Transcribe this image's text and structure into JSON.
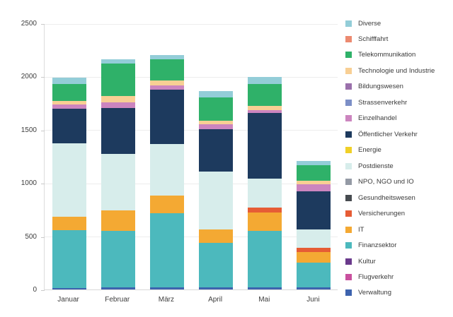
{
  "chart_data": {
    "type": "bar",
    "stacked": true,
    "title": "",
    "xlabel": "",
    "ylabel": "",
    "categories": [
      "Januar",
      "Februar",
      "März",
      "April",
      "Mai",
      "Juni"
    ],
    "yticks": [
      0,
      500,
      1000,
      1500,
      2000,
      2500
    ],
    "ylim": [
      0,
      2500
    ],
    "grid": true,
    "legend_position": "right",
    "series": [
      {
        "name": "Diverse",
        "color": "#93cdd8",
        "values": [
          60,
          40,
          40,
          60,
          65,
          40
        ]
      },
      {
        "name": "Schifffahrt",
        "color": "#ec8a70",
        "values": [
          0,
          0,
          0,
          0,
          0,
          0
        ]
      },
      {
        "name": "Telekommunikation",
        "color": "#2fb169",
        "values": [
          160,
          300,
          205,
          220,
          205,
          145
        ]
      },
      {
        "name": "Technologie und Industrie",
        "color": "#f8cf94",
        "values": [
          35,
          65,
          40,
          35,
          40,
          30
        ]
      },
      {
        "name": "Bildungswesen",
        "color": "#9a70ab",
        "values": [
          0,
          0,
          0,
          0,
          0,
          0
        ]
      },
      {
        "name": "Strassenverkehr",
        "color": "#7c8fc7",
        "values": [
          0,
          0,
          0,
          0,
          0,
          0
        ]
      },
      {
        "name": "Einzelhandel",
        "color": "#cc85bf",
        "values": [
          40,
          50,
          45,
          45,
          25,
          65
        ]
      },
      {
        "name": "Öffentlicher Verkehr",
        "color": "#1d3a5e",
        "values": [
          320,
          430,
          510,
          395,
          620,
          360
        ]
      },
      {
        "name": "Energie",
        "color": "#f0d028",
        "values": [
          0,
          0,
          0,
          0,
          0,
          0
        ]
      },
      {
        "name": "Postdienste",
        "color": "#d7edeb",
        "values": [
          690,
          530,
          485,
          545,
          270,
          175
        ]
      },
      {
        "name": "NPO, NGO und IO",
        "color": "#949aa5",
        "values": [
          0,
          0,
          0,
          0,
          0,
          0
        ]
      },
      {
        "name": "Gesundheitswesen",
        "color": "#474b50",
        "values": [
          0,
          0,
          0,
          0,
          0,
          0
        ]
      },
      {
        "name": "Versicherungen",
        "color": "#e65c35",
        "values": [
          0,
          0,
          0,
          0,
          45,
          40
        ]
      },
      {
        "name": "IT",
        "color": "#f4a933",
        "values": [
          130,
          195,
          165,
          125,
          175,
          100
        ]
      },
      {
        "name": "Finanzsektor",
        "color": "#4cb9bd",
        "values": [
          540,
          530,
          695,
          420,
          530,
          230
        ]
      },
      {
        "name": "Kultur",
        "color": "#6a3a8c",
        "values": [
          0,
          0,
          0,
          0,
          0,
          0
        ]
      },
      {
        "name": "Flugverkehr",
        "color": "#c9509e",
        "values": [
          0,
          0,
          0,
          0,
          0,
          0
        ]
      },
      {
        "name": "Verwaltung",
        "color": "#3d63ae",
        "values": [
          15,
          20,
          20,
          20,
          20,
          20
        ]
      }
    ]
  }
}
